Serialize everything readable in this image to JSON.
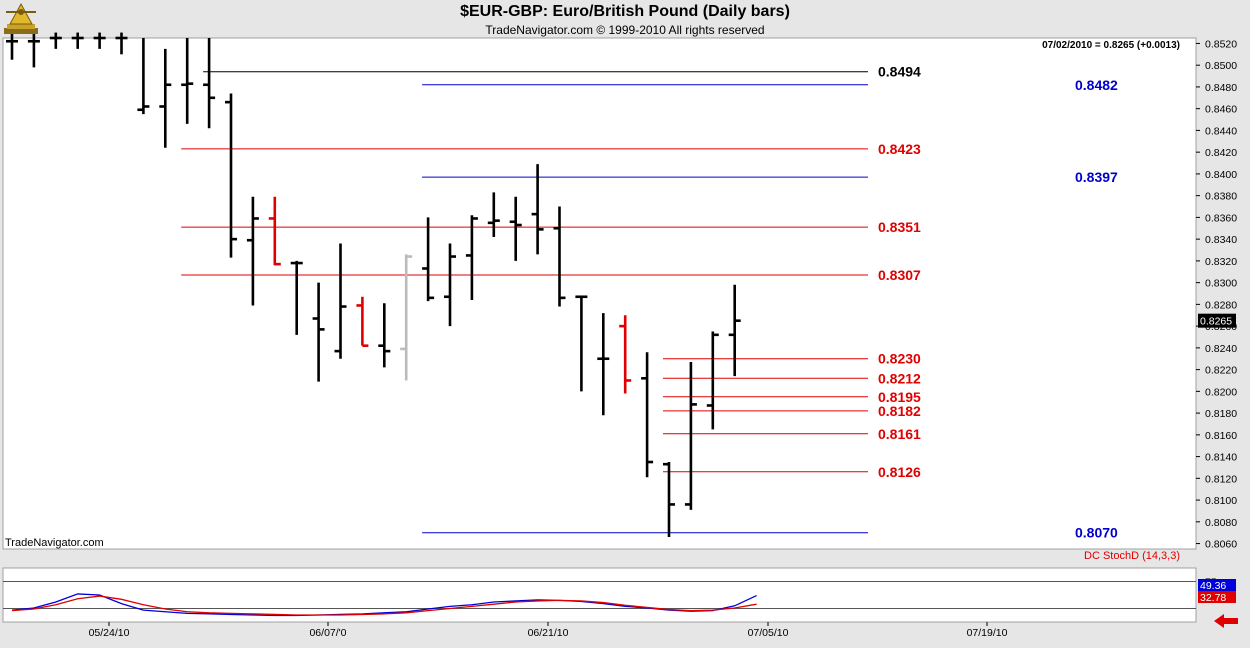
{
  "header": {
    "title": "$EUR-GBP:  Euro/British Pound  (Daily bars)",
    "subtitle": "TradeNavigator.com © 1999-2010 All rights reserved"
  },
  "chart_data": [
    {
      "type": "ohlc",
      "status": "07/02/2010 = 0.8265 (+0.0013)",
      "watermark": "TradeNavigator.com",
      "last_price_label": "0.8265",
      "ylim": [
        0.8055,
        0.8525
      ],
      "y_ticks": [
        "0.8520",
        "0.8500",
        "0.8480",
        "0.8460",
        "0.8440",
        "0.8420",
        "0.8400",
        "0.8380",
        "0.8360",
        "0.8340",
        "0.8320",
        "0.8300",
        "0.8280",
        "0.8260",
        "0.8240",
        "0.8220",
        "0.8200",
        "0.8180",
        "0.8160",
        "0.8140",
        "0.8120",
        "0.8100",
        "0.8080",
        "0.8060"
      ],
      "x_ticks": [
        "05/24/10",
        "06/07/'0",
        "06/21/10",
        "07/05/10",
        "07/19/10"
      ],
      "bars": [
        {
          "high": 0.853,
          "low": 0.8505,
          "open": 0.8522,
          "close": 0.8522,
          "color": "#000000"
        },
        {
          "high": 0.853,
          "low": 0.8498,
          "open": 0.8522,
          "close": 0.8522,
          "color": "#000000"
        },
        {
          "high": 0.853,
          "low": 0.8515,
          "open": 0.8525,
          "close": 0.8525,
          "color": "#000000"
        },
        {
          "high": 0.853,
          "low": 0.8515,
          "open": 0.8525,
          "close": 0.8525,
          "color": "#000000"
        },
        {
          "high": 0.853,
          "low": 0.8515,
          "open": 0.8525,
          "close": 0.8525,
          "color": "#000000"
        },
        {
          "high": 0.853,
          "low": 0.851,
          "open": 0.8525,
          "close": 0.8525,
          "color": "#000000"
        },
        {
          "high": 0.8525,
          "low": 0.8455,
          "open": 0.8459,
          "close": 0.8462,
          "color": "#000000"
        },
        {
          "high": 0.8515,
          "low": 0.8424,
          "open": 0.8462,
          "close": 0.8482,
          "color": "#000000"
        },
        {
          "high": 0.8525,
          "low": 0.8446,
          "open": 0.8482,
          "close": 0.8483,
          "color": "#000000"
        },
        {
          "high": 0.8525,
          "low": 0.8442,
          "open": 0.8482,
          "close": 0.847,
          "color": "#000000"
        },
        {
          "high": 0.8474,
          "low": 0.8323,
          "open": 0.8466,
          "close": 0.834,
          "color": "#000000"
        },
        {
          "high": 0.8379,
          "low": 0.8279,
          "open": 0.8339,
          "close": 0.8359,
          "color": "#000000"
        },
        {
          "high": 0.8379,
          "low": 0.8316,
          "open": 0.8359,
          "close": 0.8317,
          "color": "#e00000"
        },
        {
          "high": 0.832,
          "low": 0.8252,
          "open": 0.8318,
          "close": 0.8318,
          "color": "#000000"
        },
        {
          "high": 0.83,
          "low": 0.8209,
          "open": 0.8267,
          "close": 0.8257,
          "color": "#000000"
        },
        {
          "high": 0.8336,
          "low": 0.823,
          "open": 0.8237,
          "close": 0.8278,
          "color": "#000000"
        },
        {
          "high": 0.8287,
          "low": 0.8242,
          "open": 0.8279,
          "close": 0.8242,
          "color": "#e00000"
        },
        {
          "high": 0.8281,
          "low": 0.8222,
          "open": 0.8242,
          "close": 0.8237,
          "color": "#000000"
        },
        {
          "high": 0.8326,
          "low": 0.821,
          "open": 0.8239,
          "close": 0.8324,
          "color": "#bbbbbb"
        },
        {
          "high": 0.836,
          "low": 0.8283,
          "open": 0.8313,
          "close": 0.8286,
          "color": "#000000"
        },
        {
          "high": 0.8336,
          "low": 0.826,
          "open": 0.8287,
          "close": 0.8324,
          "color": "#000000"
        },
        {
          "high": 0.8362,
          "low": 0.8284,
          "open": 0.8325,
          "close": 0.8359,
          "color": "#000000"
        },
        {
          "high": 0.8383,
          "low": 0.8342,
          "open": 0.8355,
          "close": 0.8357,
          "color": "#000000"
        },
        {
          "high": 0.8379,
          "low": 0.832,
          "open": 0.8356,
          "close": 0.8353,
          "color": "#000000"
        },
        {
          "high": 0.8409,
          "low": 0.8326,
          "open": 0.8363,
          "close": 0.8349,
          "color": "#000000"
        },
        {
          "high": 0.837,
          "low": 0.8278,
          "open": 0.835,
          "close": 0.8286,
          "color": "#000000"
        },
        {
          "high": 0.8288,
          "low": 0.82,
          "open": 0.8287,
          "close": 0.8287,
          "color": "#000000"
        },
        {
          "high": 0.8272,
          "low": 0.8178,
          "open": 0.823,
          "close": 0.823,
          "color": "#000000"
        },
        {
          "high": 0.827,
          "low": 0.8198,
          "open": 0.826,
          "close": 0.821,
          "color": "#e00000"
        },
        {
          "high": 0.8236,
          "low": 0.8121,
          "open": 0.8212,
          "close": 0.8135,
          "color": "#000000"
        },
        {
          "high": 0.8135,
          "low": 0.8066,
          "open": 0.8133,
          "close": 0.8096,
          "color": "#000000"
        },
        {
          "high": 0.8227,
          "low": 0.8091,
          "open": 0.8096,
          "close": 0.8188,
          "color": "#000000"
        },
        {
          "high": 0.8255,
          "low": 0.8165,
          "open": 0.8187,
          "close": 0.8252,
          "color": "#000000"
        },
        {
          "high": 0.8298,
          "low": 0.8214,
          "open": 0.8252,
          "close": 0.8265,
          "color": "#000000"
        }
      ],
      "levels": [
        {
          "value": "0.8494",
          "color": "#000000",
          "start_bar": 9
        },
        {
          "value": "0.8482",
          "color": "#0000cc",
          "start_bar": 19
        },
        {
          "value": "0.8423",
          "color": "#e00000",
          "start_bar": 8
        },
        {
          "value": "0.8397",
          "color": "#0000cc",
          "start_bar": 19
        },
        {
          "value": "0.8351",
          "color": "#e00000",
          "start_bar": 8
        },
        {
          "value": "0.8307",
          "color": "#e00000",
          "start_bar": 8
        },
        {
          "value": "0.8230",
          "color": "#e00000",
          "start_bar": 30
        },
        {
          "value": "0.8212",
          "color": "#e00000",
          "start_bar": 30
        },
        {
          "value": "0.8195",
          "color": "#e00000",
          "start_bar": 30
        },
        {
          "value": "0.8182",
          "color": "#e00000",
          "start_bar": 30
        },
        {
          "value": "0.8161",
          "color": "#e00000",
          "start_bar": 30
        },
        {
          "value": "0.8126",
          "color": "#e00000",
          "start_bar": 30
        },
        {
          "value": "0.8070",
          "color": "#0000cc",
          "start_bar": 19
        }
      ]
    },
    {
      "type": "line",
      "title": "DC StochD (14,3,3)",
      "ylim": [
        0,
        100
      ],
      "y_ticks": [
        "75"
      ],
      "guide_levels": [
        75,
        25
      ],
      "series": [
        {
          "color": "#0000dd",
          "label": "49.36",
          "values": [
            22,
            26,
            37,
            52,
            50,
            34,
            22,
            19,
            16,
            15,
            14,
            13,
            12,
            12,
            13,
            14,
            15,
            17,
            19,
            24,
            29,
            32,
            37,
            39,
            41,
            40,
            38,
            34,
            29,
            26,
            22,
            20,
            21,
            30,
            49
          ]
        },
        {
          "color": "#e00000",
          "label": "32.78",
          "values": [
            21,
            24,
            32,
            43,
            48,
            42,
            32,
            24,
            19,
            17,
            16,
            15,
            14,
            13,
            13,
            13,
            14,
            15,
            17,
            21,
            25,
            29,
            33,
            37,
            39,
            40,
            39,
            36,
            31,
            27,
            23,
            21,
            22,
            26,
            33
          ]
        }
      ]
    }
  ]
}
